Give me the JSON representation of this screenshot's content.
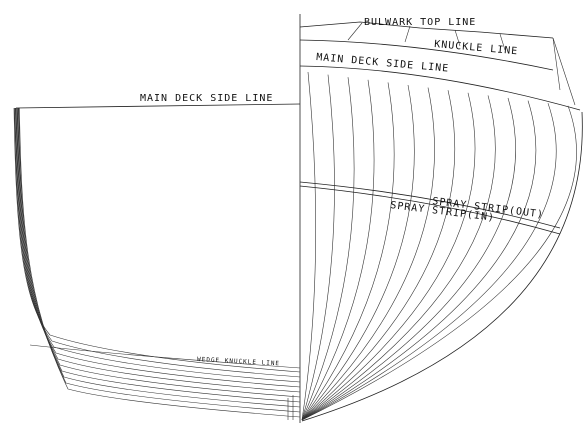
{
  "labels": {
    "bulwark_top": "BULWARK TOP LINE",
    "knuckle": "KNUCKLE LINE",
    "main_deck_right": "MAIN DECK SIDE LINE",
    "main_deck_left": "MAIN DECK SIDE LINE",
    "spray_out": "SPRAY STRIP(OUT)",
    "spray_in": "SPRAY STRIP(IN)",
    "wedge_knuckle": "WEDGE KNUCKLE LINE"
  },
  "colors": {
    "line": "#222222",
    "background": "#ffffff"
  }
}
